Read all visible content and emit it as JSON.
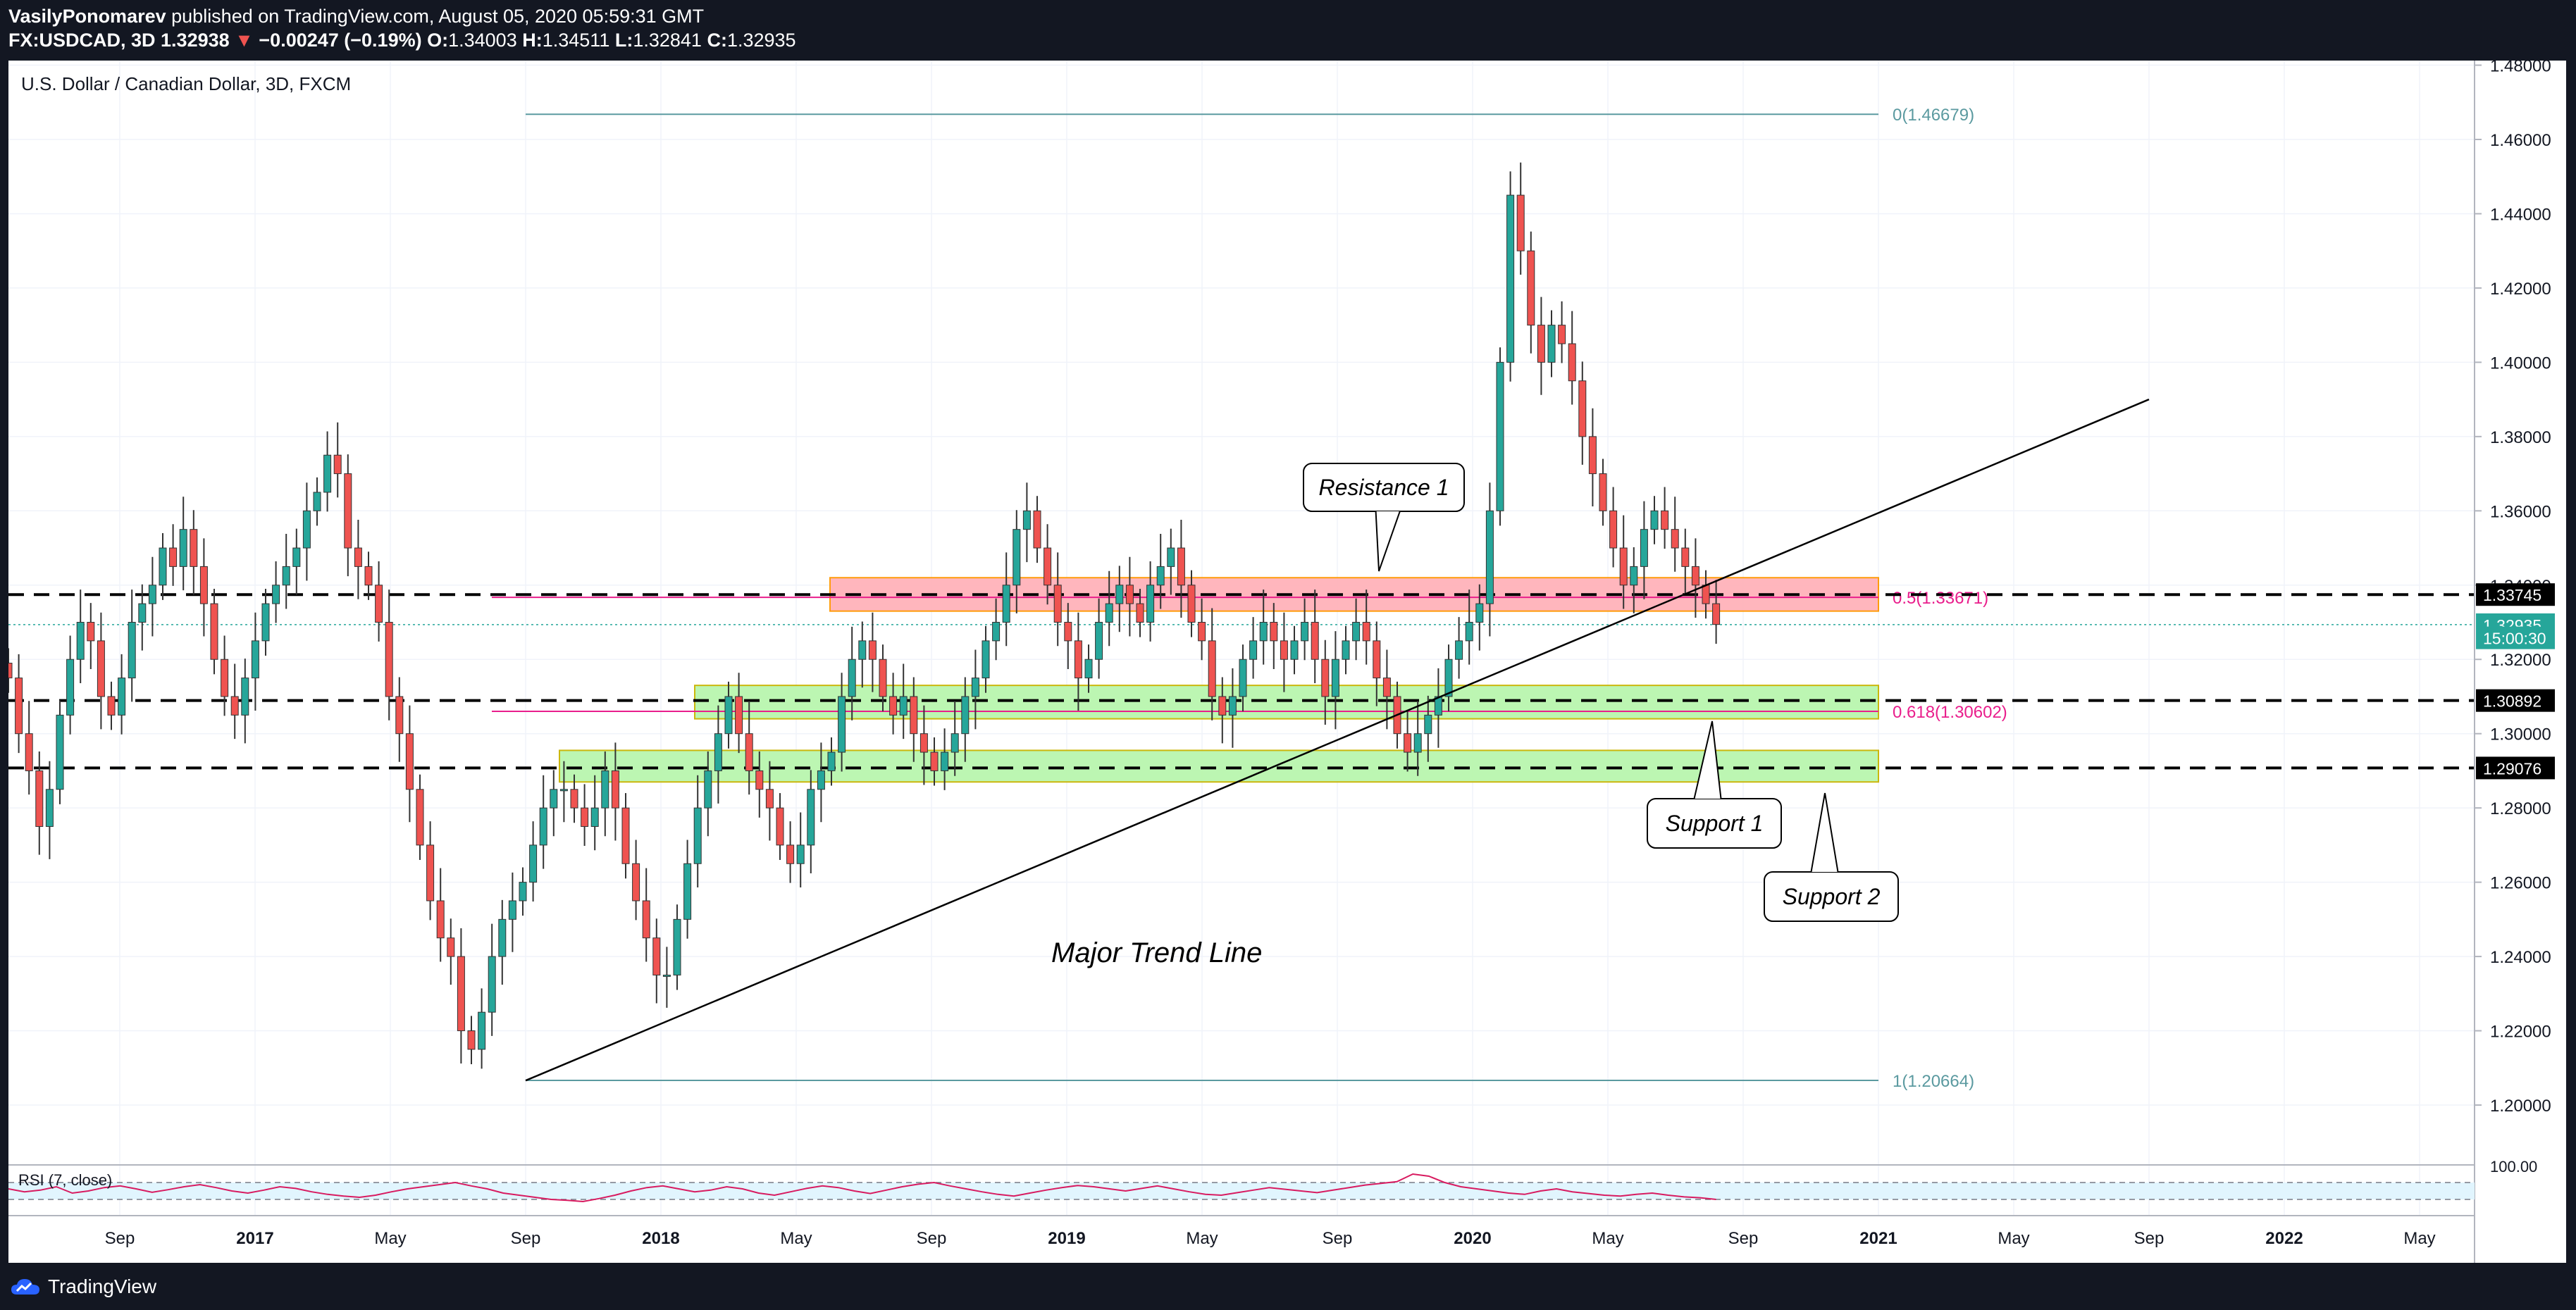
{
  "header": {
    "publisher": "VasilyPonomarev",
    "published_text": "published on TradingView.com, August 05, 2020 05:59:31 GMT",
    "symbol": "FX:USDCAD, 3D",
    "last": "1.32938",
    "change": "−0.00247 (−0.19%)",
    "o_label": "O:",
    "o": "1.34003",
    "h_label": "H:",
    "h": "1.34511",
    "l_label": "L:",
    "l": "1.32841",
    "c_label": "C:",
    "c": "1.32935"
  },
  "chart_title": "U.S. Dollar / Canadian Dollar, 3D, FXCM",
  "footer": {
    "brand": "TradingView"
  },
  "colors": {
    "up": "#26a69a",
    "down": "#ef5350",
    "fib_line": "#5b9aa0",
    "fib_mid": "#e91e8c",
    "green_zone": "#b9f6ae",
    "red_zone": "#ffb3ba",
    "rsi_line": "#d81b60"
  },
  "chart_data": {
    "type": "candlestick",
    "x_axis_labels": [
      "Sep",
      "2017",
      "May",
      "Sep",
      "2018",
      "May",
      "Sep",
      "2019",
      "May",
      "Sep",
      "2020",
      "May",
      "Sep",
      "2021",
      "May",
      "Sep",
      "2022",
      "May"
    ],
    "y_tick_labels": [
      "1.48000",
      "1.46000",
      "1.44000",
      "1.42000",
      "1.40000",
      "1.38000",
      "1.36000",
      "1.34000",
      "1.32000",
      "1.30000",
      "1.28000",
      "1.26000",
      "1.24000",
      "1.22000",
      "1.20000"
    ],
    "ylim": [
      1.19,
      1.48
    ],
    "price_labels": [
      {
        "value": 1.33745,
        "text": "1.33745",
        "style": "dark"
      },
      {
        "value": 1.32935,
        "text": "1.32935",
        "style": "teal"
      },
      {
        "value": 1.3258,
        "text": "15:00:30",
        "style": "teal"
      },
      {
        "value": 1.30892,
        "text": "1.30892",
        "style": "dark"
      },
      {
        "value": 1.29076,
        "text": "1.29076",
        "style": "dark"
      }
    ],
    "dashed_levels": [
      1.33745,
      1.30892,
      1.29076
    ],
    "last_price": 1.32935,
    "fib_levels": [
      {
        "value": 1.46679,
        "text": "0(1.46679)"
      },
      {
        "value": 1.33671,
        "text": "0.5(1.33671)"
      },
      {
        "value": 1.30602,
        "text": "0.618(1.30602)"
      },
      {
        "value": 1.20664,
        "text": "1(1.20664)"
      }
    ],
    "zones": [
      {
        "kind": "resistance",
        "from": 1.333,
        "to": 1.342,
        "start": "2018-06",
        "end": "2021-01"
      },
      {
        "kind": "support",
        "from": 1.304,
        "to": 1.313,
        "start": "2018-02",
        "end": "2021-01"
      },
      {
        "kind": "support",
        "from": 1.287,
        "to": 1.2955,
        "start": "2017-10",
        "end": "2021-01"
      }
    ],
    "trend_line": {
      "from": [
        "2017-09",
        1.2066
      ],
      "to": [
        "2021-09",
        1.39
      ],
      "label": "Major Trend Line"
    },
    "callouts": [
      "Resistance 1",
      "Support 1",
      "Support 2"
    ],
    "closes": [
      1.315,
      1.3,
      1.29,
      1.275,
      1.285,
      1.305,
      1.32,
      1.33,
      1.325,
      1.31,
      1.305,
      1.315,
      1.33,
      1.335,
      1.34,
      1.35,
      1.345,
      1.355,
      1.345,
      1.335,
      1.32,
      1.31,
      1.305,
      1.315,
      1.325,
      1.335,
      1.34,
      1.345,
      1.35,
      1.36,
      1.365,
      1.375,
      1.37,
      1.35,
      1.345,
      1.34,
      1.33,
      1.31,
      1.3,
      1.285,
      1.27,
      1.255,
      1.245,
      1.24,
      1.22,
      1.215,
      1.225,
      1.24,
      1.25,
      1.255,
      1.26,
      1.27,
      1.28,
      1.285,
      1.285,
      1.28,
      1.275,
      1.28,
      1.29,
      1.28,
      1.265,
      1.255,
      1.245,
      1.235,
      1.235,
      1.25,
      1.265,
      1.28,
      1.29,
      1.3,
      1.31,
      1.3,
      1.29,
      1.285,
      1.28,
      1.27,
      1.265,
      1.27,
      1.285,
      1.29,
      1.295,
      1.31,
      1.32,
      1.325,
      1.32,
      1.31,
      1.305,
      1.31,
      1.3,
      1.295,
      1.29,
      1.295,
      1.3,
      1.31,
      1.315,
      1.325,
      1.33,
      1.34,
      1.355,
      1.36,
      1.35,
      1.34,
      1.33,
      1.325,
      1.315,
      1.32,
      1.33,
      1.335,
      1.34,
      1.335,
      1.33,
      1.34,
      1.345,
      1.35,
      1.34,
      1.33,
      1.325,
      1.31,
      1.305,
      1.31,
      1.32,
      1.325,
      1.33,
      1.325,
      1.32,
      1.325,
      1.33,
      1.32,
      1.31,
      1.32,
      1.325,
      1.33,
      1.325,
      1.315,
      1.31,
      1.3,
      1.295,
      1.3,
      1.305,
      1.31,
      1.32,
      1.325,
      1.33,
      1.335,
      1.36,
      1.4,
      1.445,
      1.43,
      1.41,
      1.4,
      1.41,
      1.405,
      1.395,
      1.38,
      1.37,
      1.36,
      1.35,
      1.34,
      1.345,
      1.355,
      1.36,
      1.355,
      1.35,
      1.345,
      1.34,
      1.335,
      1.3294
    ]
  },
  "rsi": {
    "label": "RSI (7, close)",
    "top_tick": "100.00",
    "upper": 70,
    "lower": 30,
    "values": [
      55,
      48,
      52,
      60,
      45,
      50,
      58,
      62,
      55,
      47,
      53,
      60,
      65,
      58,
      50,
      45,
      52,
      60,
      56,
      48,
      42,
      38,
      35,
      40,
      48,
      55,
      60,
      65,
      70,
      62,
      55,
      45,
      40,
      35,
      30,
      28,
      25,
      32,
      40,
      50,
      58,
      62,
      55,
      48,
      52,
      60,
      55,
      45,
      40,
      48,
      56,
      62,
      58,
      50,
      44,
      52,
      60,
      66,
      70,
      62,
      55,
      48,
      42,
      38,
      45,
      52,
      58,
      63,
      60,
      55,
      50,
      56,
      62,
      55,
      48,
      42,
      40,
      46,
      52,
      58,
      54,
      50,
      46,
      52,
      58,
      64,
      68,
      72,
      90,
      85,
      70,
      60,
      55,
      50,
      45,
      42,
      50,
      55,
      48,
      44,
      40,
      38,
      42,
      45,
      40,
      36,
      34,
      30
    ]
  }
}
